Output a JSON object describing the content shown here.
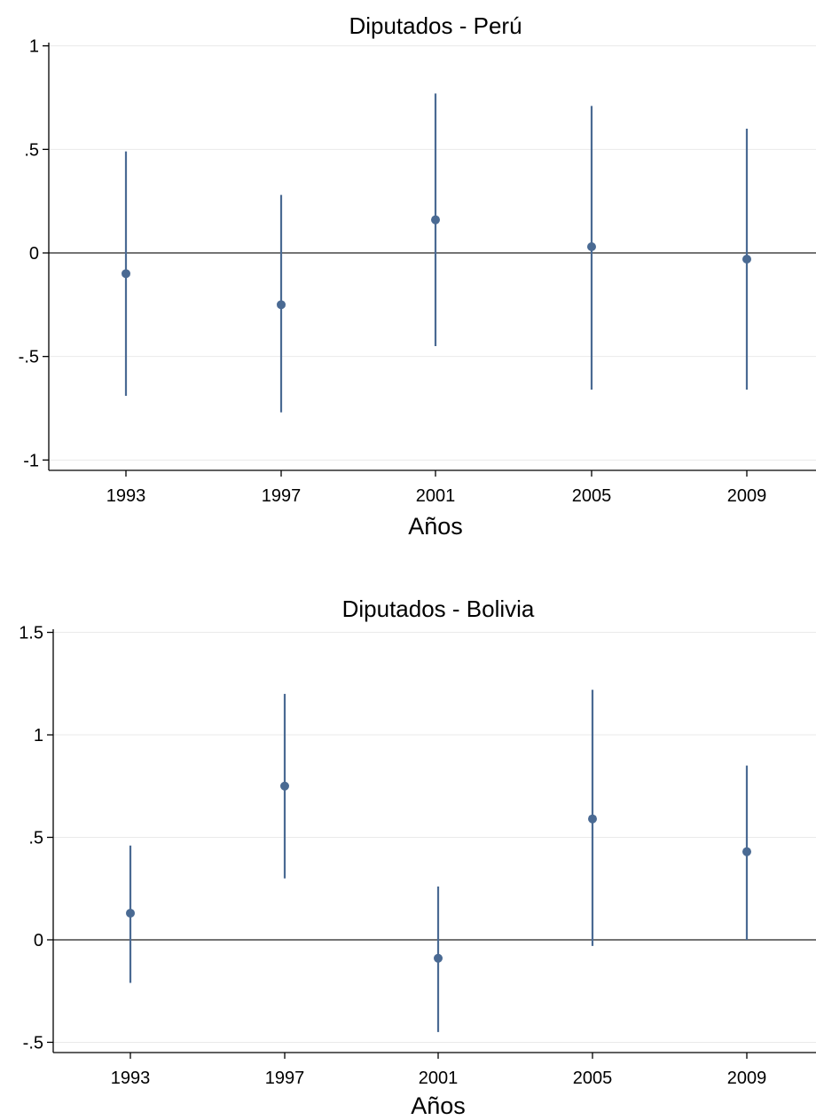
{
  "chart_data": [
    {
      "type": "scatter",
      "title": "Diputados - Perú",
      "xlabel": "Años",
      "ylabel": "",
      "categories": [
        "1993",
        "1997",
        "2001",
        "2005",
        "2009"
      ],
      "ylim": [
        -1.05,
        1.05
      ],
      "yticks": [
        1,
        0.5,
        0,
        -0.5,
        -1
      ],
      "ytick_labels": [
        "1",
        ".5",
        "0",
        "-.5",
        "-1"
      ],
      "grid": true,
      "reference_line": 0,
      "color": "#4a6a93",
      "series": [
        {
          "points": [
            -0.1,
            -0.25,
            0.16,
            0.03,
            -0.03
          ],
          "ci_low": [
            -0.69,
            -0.77,
            -0.45,
            -0.66,
            -0.66
          ],
          "ci_high": [
            0.49,
            0.28,
            0.77,
            0.71,
            0.6
          ]
        }
      ]
    },
    {
      "type": "scatter",
      "title": "Diputados - Bolivia",
      "xlabel": "Años",
      "ylabel": "",
      "categories": [
        "1993",
        "1997",
        "2001",
        "2005",
        "2009"
      ],
      "ylim": [
        -0.55,
        1.55
      ],
      "yticks": [
        1.5,
        1,
        0.5,
        0,
        -0.5
      ],
      "ytick_labels": [
        "1.5",
        "1",
        ".5",
        "0",
        "-.5"
      ],
      "grid": true,
      "reference_line": 0,
      "color": "#4a6a93",
      "series": [
        {
          "points": [
            0.13,
            0.75,
            -0.09,
            0.59,
            0.43
          ],
          "ci_low": [
            -0.21,
            0.3,
            -0.45,
            -0.03,
            0
          ],
          "ci_high": [
            0.46,
            1.2,
            0.26,
            1.22,
            0.85
          ]
        }
      ]
    }
  ]
}
